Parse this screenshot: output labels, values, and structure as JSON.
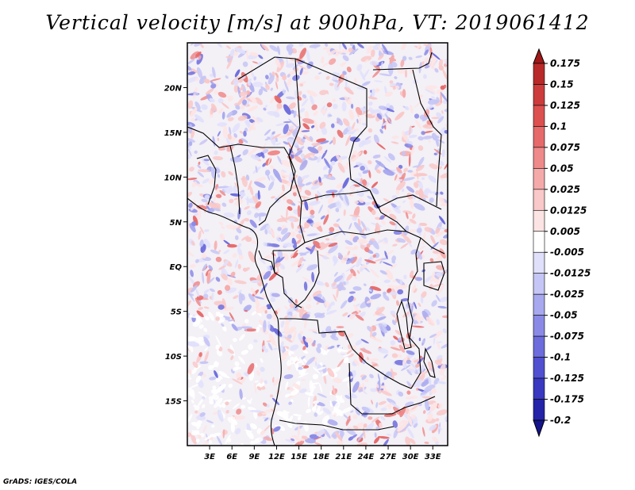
{
  "title": "Vertical velocity [m/s] at 900hPa, VT: 2019061412",
  "credit": "GrADS: IGES/COLA",
  "map": {
    "lon_range": [
      0,
      35
    ],
    "lat_range": [
      -20,
      25
    ],
    "lon_ticks": [
      {
        "value": 3,
        "label": "3E"
      },
      {
        "value": 6,
        "label": "6E"
      },
      {
        "value": 9,
        "label": "9E"
      },
      {
        "value": 12,
        "label": "12E"
      },
      {
        "value": 15,
        "label": "15E"
      },
      {
        "value": 18,
        "label": "18E"
      },
      {
        "value": 21,
        "label": "21E"
      },
      {
        "value": 24,
        "label": "24E"
      },
      {
        "value": 27,
        "label": "27E"
      },
      {
        "value": 30,
        "label": "30E"
      },
      {
        "value": 33,
        "label": "33E"
      }
    ],
    "lat_ticks": [
      {
        "value": 20,
        "label": "20N"
      },
      {
        "value": 15,
        "label": "15N"
      },
      {
        "value": 10,
        "label": "10N"
      },
      {
        "value": 5,
        "label": "5N"
      },
      {
        "value": 0,
        "label": "EQ"
      },
      {
        "value": -5,
        "label": "5S"
      },
      {
        "value": -10,
        "label": "10S"
      },
      {
        "value": -15,
        "label": "15S"
      }
    ],
    "field_colors": {
      "positive": "#e06060",
      "negative": "#5050d8",
      "neutral": "#ffffff",
      "border": "#000000"
    }
  },
  "colorbar": {
    "labels": [
      "0.175",
      "0.15",
      "0.125",
      "0.1",
      "0.075",
      "0.05",
      "0.025",
      "0.0125",
      "0.005",
      "-0.005",
      "-0.0125",
      "-0.025",
      "-0.05",
      "-0.075",
      "-0.1",
      "-0.125",
      "-0.175",
      "-0.2"
    ],
    "colors": [
      "#a01818",
      "#b82a2a",
      "#cc3c3c",
      "#dc5050",
      "#e66a6a",
      "#ef8a8a",
      "#f5aaaa",
      "#f9c8c8",
      "#fde4e4",
      "#ffffff",
      "#e0e0fb",
      "#c6c6f6",
      "#a8a8ef",
      "#8a8ae6",
      "#6c6cdc",
      "#5050d0",
      "#3838c0",
      "#2424a8",
      "#14148c"
    ]
  }
}
